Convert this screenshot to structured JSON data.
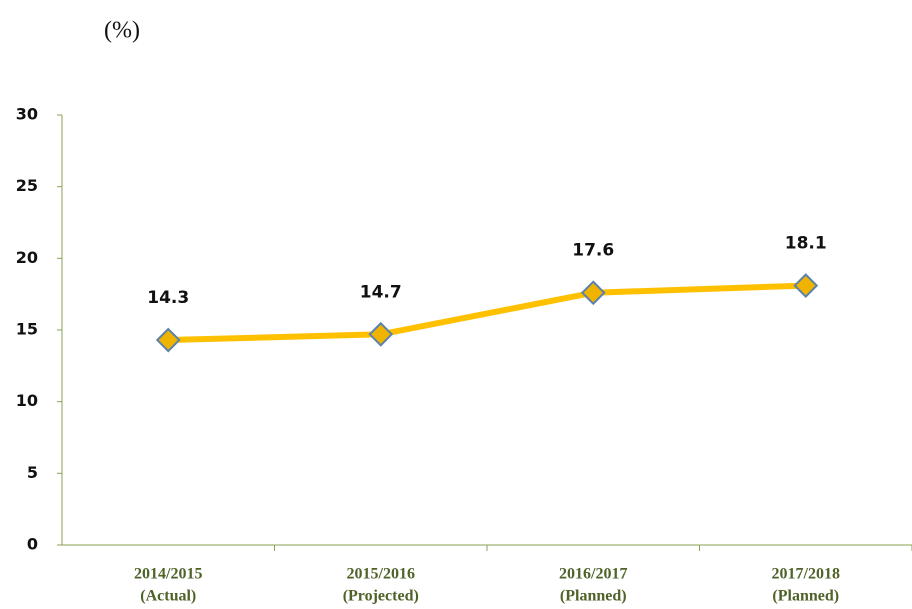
{
  "chart_data": {
    "type": "line",
    "y_label": "(%)",
    "categories": [
      [
        "2014/2015",
        "(Actual)"
      ],
      [
        "2015/2016",
        "(Projected)"
      ],
      [
        "2016/2017",
        "(Planned)"
      ],
      [
        "2017/2018",
        "(Planned)"
      ]
    ],
    "series": [
      {
        "color": "#ffc000",
        "values": [
          14.3,
          14.7,
          17.6,
          18.1
        ]
      }
    ],
    "ylim": [
      0,
      30
    ],
    "yticks": [
      0,
      5,
      10,
      15,
      20,
      25,
      30
    ],
    "grid": false
  }
}
